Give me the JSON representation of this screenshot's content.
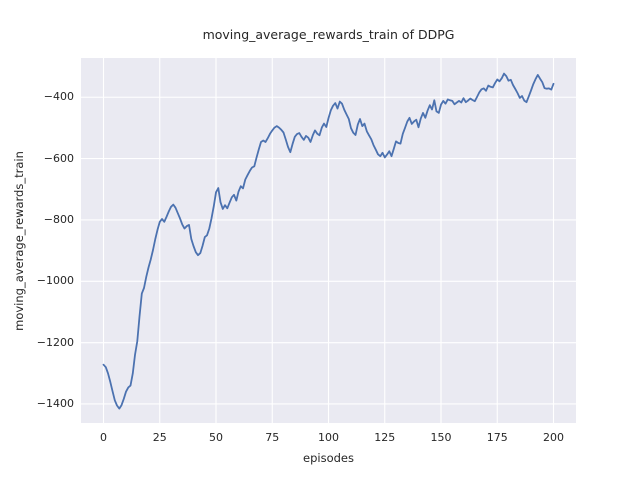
{
  "title": "moving_average_rewards_train of DDPG",
  "x_label": "episodes",
  "y_label": "moving_average_rewards_train",
  "colors": {
    "figure_bg": "#ffffff",
    "plot_bg": "#eaeaf2",
    "grid": "#ffffff",
    "text": "#262626",
    "line": "#4c72b0"
  },
  "chart_data": {
    "type": "line",
    "title": "moving_average_rewards_train of DDPG",
    "xlabel": "episodes",
    "ylabel": "moving_average_rewards_train",
    "xlim": [
      -10,
      210
    ],
    "ylim": [
      -1462,
      -272
    ],
    "grid": true,
    "legend": false,
    "x_ticks": {
      "values": [
        0,
        25,
        50,
        75,
        100,
        125,
        150,
        175,
        200
      ],
      "labels": [
        "0",
        "25",
        "50",
        "75",
        "100",
        "125",
        "150",
        "175",
        "200"
      ]
    },
    "y_ticks": {
      "values": [
        -400,
        -600,
        -800,
        -1000,
        -1200,
        -1400
      ],
      "labels": [
        "−400",
        "−600",
        "−800",
        "−1000",
        "−1200",
        "−1400"
      ]
    },
    "series": [
      {
        "name": "moving_average_rewards_train",
        "color": "#4c72b0",
        "points": [
          [
            0,
            -1272
          ],
          [
            1,
            -1280
          ],
          [
            2,
            -1300
          ],
          [
            3,
            -1328
          ],
          [
            4,
            -1358
          ],
          [
            5,
            -1388
          ],
          [
            6,
            -1405
          ],
          [
            7,
            -1415
          ],
          [
            8,
            -1404
          ],
          [
            9,
            -1383
          ],
          [
            10,
            -1360
          ],
          [
            11,
            -1346
          ],
          [
            12,
            -1340
          ],
          [
            13,
            -1300
          ],
          [
            14,
            -1240
          ],
          [
            15,
            -1195
          ],
          [
            16,
            -1115
          ],
          [
            17,
            -1040
          ],
          [
            18,
            -1022
          ],
          [
            19,
            -985
          ],
          [
            20,
            -955
          ],
          [
            21,
            -928
          ],
          [
            22,
            -898
          ],
          [
            23,
            -862
          ],
          [
            24,
            -832
          ],
          [
            25,
            -806
          ],
          [
            26,
            -797
          ],
          [
            27,
            -806
          ],
          [
            28,
            -790
          ],
          [
            29,
            -772
          ],
          [
            30,
            -757
          ],
          [
            31,
            -750
          ],
          [
            32,
            -760
          ],
          [
            33,
            -778
          ],
          [
            34,
            -795
          ],
          [
            35,
            -815
          ],
          [
            36,
            -828
          ],
          [
            37,
            -820
          ],
          [
            38,
            -816
          ],
          [
            39,
            -862
          ],
          [
            40,
            -885
          ],
          [
            41,
            -905
          ],
          [
            42,
            -915
          ],
          [
            43,
            -908
          ],
          [
            44,
            -885
          ],
          [
            45,
            -856
          ],
          [
            46,
            -850
          ],
          [
            47,
            -828
          ],
          [
            48,
            -795
          ],
          [
            49,
            -755
          ],
          [
            50,
            -710
          ],
          [
            51,
            -696
          ],
          [
            52,
            -742
          ],
          [
            53,
            -764
          ],
          [
            54,
            -752
          ],
          [
            55,
            -762
          ],
          [
            56,
            -744
          ],
          [
            57,
            -726
          ],
          [
            58,
            -718
          ],
          [
            59,
            -737
          ],
          [
            60,
            -708
          ],
          [
            61,
            -690
          ],
          [
            62,
            -697
          ],
          [
            63,
            -668
          ],
          [
            64,
            -654
          ],
          [
            65,
            -640
          ],
          [
            66,
            -629
          ],
          [
            67,
            -625
          ],
          [
            68,
            -597
          ],
          [
            69,
            -570
          ],
          [
            70,
            -546
          ],
          [
            71,
            -541
          ],
          [
            72,
            -546
          ],
          [
            73,
            -533
          ],
          [
            74,
            -519
          ],
          [
            75,
            -508
          ],
          [
            76,
            -499
          ],
          [
            77,
            -494
          ],
          [
            78,
            -499
          ],
          [
            79,
            -506
          ],
          [
            80,
            -515
          ],
          [
            81,
            -538
          ],
          [
            82,
            -562
          ],
          [
            83,
            -579
          ],
          [
            84,
            -553
          ],
          [
            85,
            -529
          ],
          [
            86,
            -520
          ],
          [
            87,
            -517
          ],
          [
            88,
            -529
          ],
          [
            89,
            -539
          ],
          [
            90,
            -526
          ],
          [
            91,
            -532
          ],
          [
            92,
            -546
          ],
          [
            93,
            -524
          ],
          [
            94,
            -508
          ],
          [
            95,
            -519
          ],
          [
            96,
            -524
          ],
          [
            97,
            -499
          ],
          [
            98,
            -486
          ],
          [
            99,
            -497
          ],
          [
            100,
            -468
          ],
          [
            101,
            -443
          ],
          [
            102,
            -428
          ],
          [
            103,
            -419
          ],
          [
            104,
            -437
          ],
          [
            105,
            -414
          ],
          [
            106,
            -421
          ],
          [
            107,
            -441
          ],
          [
            108,
            -456
          ],
          [
            109,
            -471
          ],
          [
            110,
            -501
          ],
          [
            111,
            -516
          ],
          [
            112,
            -523
          ],
          [
            113,
            -489
          ],
          [
            114,
            -471
          ],
          [
            115,
            -494
          ],
          [
            116,
            -486
          ],
          [
            117,
            -511
          ],
          [
            118,
            -524
          ],
          [
            119,
            -537
          ],
          [
            120,
            -556
          ],
          [
            121,
            -571
          ],
          [
            122,
            -586
          ],
          [
            123,
            -592
          ],
          [
            124,
            -581
          ],
          [
            125,
            -596
          ],
          [
            126,
            -587
          ],
          [
            127,
            -576
          ],
          [
            128,
            -592
          ],
          [
            129,
            -568
          ],
          [
            130,
            -544
          ],
          [
            131,
            -549
          ],
          [
            132,
            -551
          ],
          [
            133,
            -519
          ],
          [
            134,
            -500
          ],
          [
            135,
            -479
          ],
          [
            136,
            -467
          ],
          [
            137,
            -487
          ],
          [
            138,
            -479
          ],
          [
            139,
            -473
          ],
          [
            140,
            -498
          ],
          [
            141,
            -469
          ],
          [
            142,
            -451
          ],
          [
            143,
            -467
          ],
          [
            144,
            -444
          ],
          [
            145,
            -426
          ],
          [
            146,
            -440
          ],
          [
            147,
            -410
          ],
          [
            148,
            -446
          ],
          [
            149,
            -451
          ],
          [
            150,
            -424
          ],
          [
            151,
            -412
          ],
          [
            152,
            -421
          ],
          [
            153,
            -407
          ],
          [
            154,
            -410
          ],
          [
            155,
            -412
          ],
          [
            156,
            -423
          ],
          [
            157,
            -417
          ],
          [
            158,
            -412
          ],
          [
            159,
            -417
          ],
          [
            160,
            -403
          ],
          [
            161,
            -416
          ],
          [
            162,
            -411
          ],
          [
            163,
            -404
          ],
          [
            164,
            -409
          ],
          [
            165,
            -413
          ],
          [
            166,
            -399
          ],
          [
            167,
            -384
          ],
          [
            168,
            -374
          ],
          [
            169,
            -371
          ],
          [
            170,
            -379
          ],
          [
            171,
            -362
          ],
          [
            172,
            -366
          ],
          [
            173,
            -368
          ],
          [
            174,
            -354
          ],
          [
            175,
            -342
          ],
          [
            176,
            -348
          ],
          [
            177,
            -338
          ],
          [
            178,
            -323
          ],
          [
            179,
            -331
          ],
          [
            180,
            -346
          ],
          [
            181,
            -343
          ],
          [
            182,
            -360
          ],
          [
            183,
            -373
          ],
          [
            184,
            -386
          ],
          [
            185,
            -402
          ],
          [
            186,
            -396
          ],
          [
            187,
            -411
          ],
          [
            188,
            -416
          ],
          [
            189,
            -397
          ],
          [
            190,
            -378
          ],
          [
            191,
            -357
          ],
          [
            192,
            -341
          ],
          [
            193,
            -327
          ],
          [
            194,
            -339
          ],
          [
            195,
            -351
          ],
          [
            196,
            -370
          ],
          [
            197,
            -372
          ],
          [
            198,
            -371
          ],
          [
            199,
            -375
          ],
          [
            200,
            -356
          ]
        ]
      }
    ]
  }
}
